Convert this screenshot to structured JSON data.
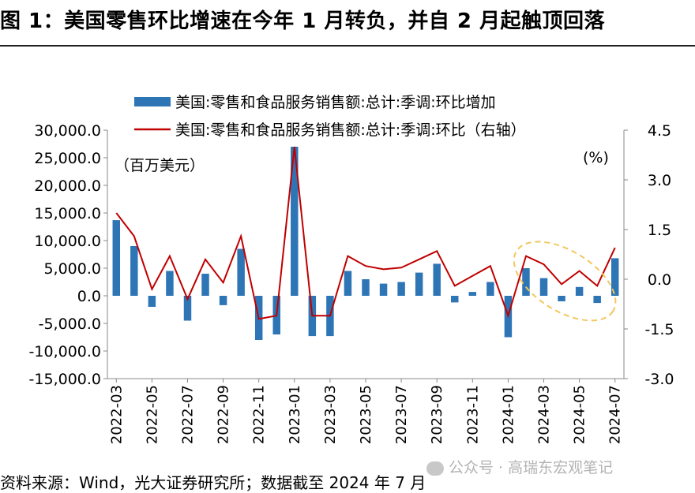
{
  "figure": {
    "title": "图 1：美国零售环比增速在今年 1 月转负，并自 2 月起触顶回落",
    "source": "资料来源：Wind，光大证券研究所；数据截至 2024 年 7 月",
    "watermark": "公众号 · 高瑞东宏观笔记"
  },
  "colors": {
    "bar": "#2e75b6",
    "line": "#c00000",
    "annotation": "#f2c75c"
  },
  "chart_data": {
    "type": "bar",
    "categories": [
      "2022-03",
      "2022-04",
      "2022-05",
      "2022-06",
      "2022-07",
      "2022-08",
      "2022-09",
      "2022-10",
      "2022-11",
      "2022-12",
      "2023-01",
      "2023-02",
      "2023-03",
      "2023-04",
      "2023-05",
      "2023-06",
      "2023-07",
      "2023-08",
      "2023-09",
      "2023-10",
      "2023-11",
      "2023-12",
      "2024-01",
      "2024-02",
      "2024-03",
      "2024-04",
      "2024-05",
      "2024-06",
      "2024-07"
    ],
    "xtick_labels": [
      "2022-03",
      "2022-05",
      "2022-07",
      "2022-09",
      "2022-11",
      "2023-01",
      "2023-03",
      "2023-05",
      "2023-07",
      "2023-09",
      "2023-11",
      "2024-01",
      "2024-03",
      "2024-05",
      "2024-07"
    ],
    "series": [
      {
        "name": "美国:零售和食品服务销售额:总计:季调:环比增加",
        "type": "bar",
        "axis": "left",
        "values": [
          13700,
          9000,
          -2000,
          4500,
          -4500,
          4000,
          -1700,
          8500,
          -8000,
          -7000,
          27000,
          -7300,
          -7300,
          4500,
          3000,
          2200,
          2500,
          4200,
          5800,
          -1200,
          700,
          2500,
          -7500,
          5000,
          3200,
          -1000,
          1600,
          -1300,
          6800
        ]
      },
      {
        "name": "美国:零售和食品服务销售额:总计:季调:环比（右轴）",
        "type": "line",
        "axis": "right",
        "values": [
          2.0,
          1.3,
          -0.3,
          0.7,
          -0.6,
          0.6,
          -0.1,
          1.3,
          -1.2,
          -1.1,
          4.0,
          -1.1,
          -1.1,
          0.7,
          0.4,
          0.3,
          0.35,
          0.6,
          0.85,
          -0.2,
          0.1,
          0.4,
          -1.1,
          0.7,
          0.45,
          -0.15,
          0.25,
          -0.2,
          0.95
        ]
      }
    ],
    "left_axis": {
      "ylim": [
        -15000,
        30000
      ],
      "ticks": [
        "-15,000.0",
        "-10,000.0",
        "-5,000.0",
        "0.0",
        "5,000.0",
        "10,000.0",
        "15,000.0",
        "20,000.0",
        "25,000.0",
        "30,000.0"
      ],
      "unit": "（百万美元）"
    },
    "right_axis": {
      "ylim": [
        -3.0,
        4.5
      ],
      "ticks": [
        "-3.0",
        "-1.5",
        "0.0",
        "1.5",
        "3.0",
        "4.5"
      ],
      "unit": "(%)"
    },
    "legend_placement": "top",
    "grid": false,
    "annotation": "dashed ellipse highlighting 2024-02 to 2024-06"
  }
}
